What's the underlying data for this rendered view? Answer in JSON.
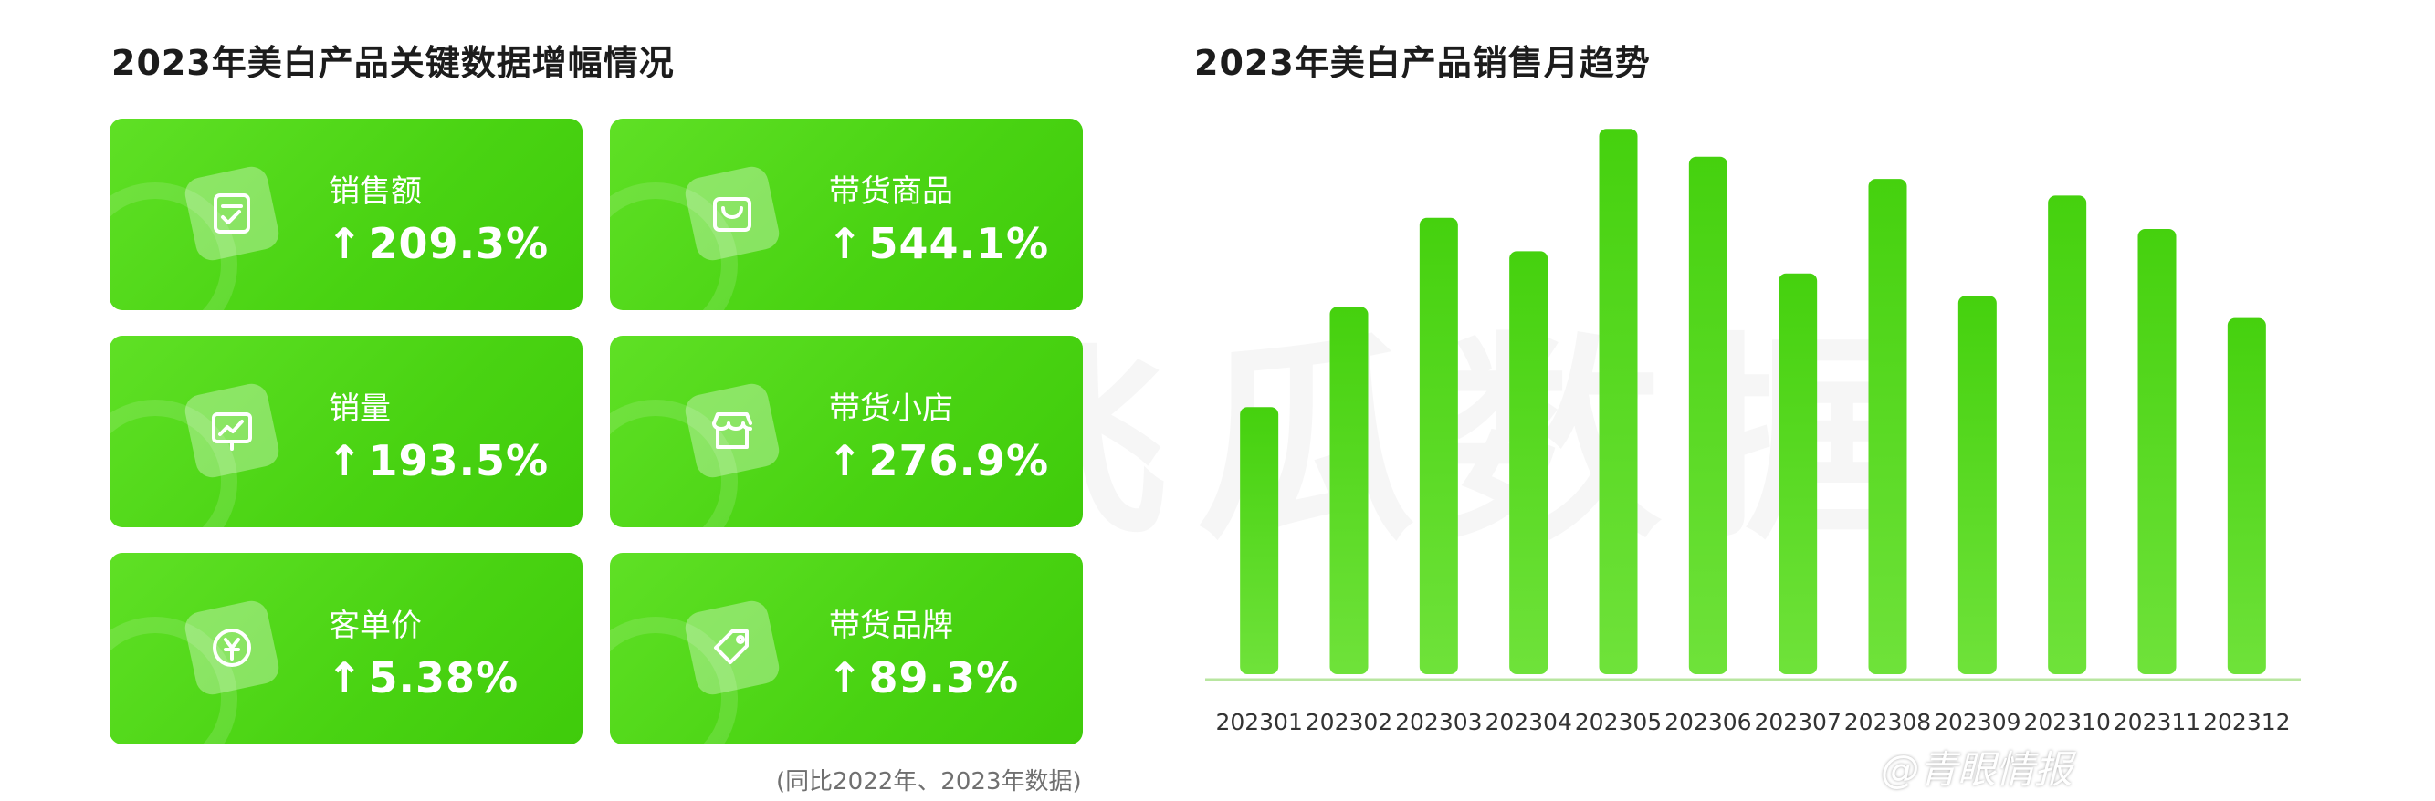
{
  "left_panel": {
    "title": "2023年美白产品关键数据增幅情况",
    "metrics": [
      {
        "label": "销售额",
        "value": "209.3%",
        "icon": "receipt-icon"
      },
      {
        "label": "带货商品",
        "value": "544.1%",
        "icon": "shopping-bag-icon"
      },
      {
        "label": "销量",
        "value": "193.5%",
        "icon": "trend-board-icon"
      },
      {
        "label": "带货小店",
        "value": "276.9%",
        "icon": "storefront-icon"
      },
      {
        "label": "客单价",
        "value": "5.38%",
        "icon": "yen-coin-icon"
      },
      {
        "label": "带货品牌",
        "value": "89.3%",
        "icon": "price-tag-icon"
      }
    ],
    "arrow": "↑",
    "footnote": "(同比2022年、2023年数据)"
  },
  "right_panel": {
    "title": "2023年美白产品销售月趋势"
  },
  "chart_data": {
    "type": "bar",
    "categories": [
      "202301",
      "202302",
      "202303",
      "202304",
      "202305",
      "202306",
      "202307",
      "202308",
      "202309",
      "202310",
      "202311",
      "202312"
    ],
    "values": [
      48,
      66,
      82,
      76,
      98,
      93,
      72,
      89,
      68,
      86,
      80,
      64
    ],
    "ylim": [
      0,
      100
    ],
    "grid": false,
    "color": "#4fd61a"
  },
  "watermark": "飞瓜数据",
  "credit": "@青眼情报",
  "colors": {
    "card_green": "#4ed417",
    "bar_green": "#4fd61a"
  }
}
